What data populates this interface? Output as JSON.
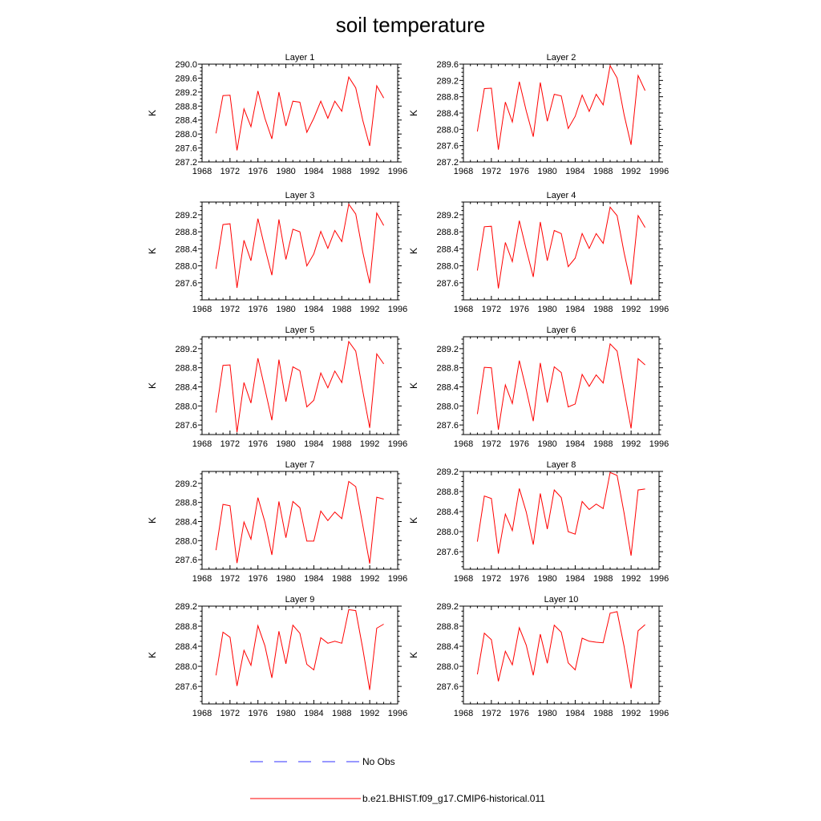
{
  "figure": {
    "title": "soil temperature"
  },
  "colors": {
    "model": "#ff0000",
    "obs": "#0000ff",
    "axis": "#000000"
  },
  "legend": {
    "entries": [
      {
        "label": "No Obs",
        "style": "dashed",
        "color": "#0000ff"
      },
      {
        "label": "b.e21.BHIST.f09_g17.CMIP6-historical.011",
        "style": "solid",
        "color": "#ff0000"
      }
    ]
  },
  "chart_data": [
    {
      "type": "line",
      "title": "Layer 1",
      "xlabel": "",
      "ylabel": "K",
      "xlim": [
        1968,
        1996
      ],
      "xticks": [
        1968,
        1972,
        1976,
        1980,
        1984,
        1988,
        1992,
        1996
      ],
      "ylim": [
        287.2,
        290.0
      ],
      "yticks": [
        287.2,
        287.6,
        288.0,
        288.4,
        288.8,
        289.2,
        289.6,
        290.0
      ],
      "x": [
        1970,
        1971,
        1972,
        1973,
        1974,
        1975,
        1976,
        1977,
        1978,
        1979,
        1980,
        1981,
        1982,
        1983,
        1984,
        1985,
        1986,
        1987,
        1988,
        1989,
        1990,
        1991,
        1992,
        1993,
        1994
      ],
      "series": [
        {
          "name": "b.e21.BHIST.f09_g17.CMIP6-historical.011",
          "values": [
            288.02,
            289.1,
            289.11,
            287.53,
            288.72,
            288.21,
            289.23,
            288.45,
            287.86,
            289.2,
            288.23,
            288.94,
            288.91,
            288.05,
            288.45,
            288.94,
            288.45,
            288.94,
            288.65,
            289.63,
            289.32,
            288.4,
            287.66,
            289.38,
            289.03
          ]
        }
      ]
    },
    {
      "type": "line",
      "title": "Layer 2",
      "xlabel": "",
      "ylabel": "K",
      "xlim": [
        1968,
        1996
      ],
      "xticks": [
        1968,
        1972,
        1976,
        1980,
        1984,
        1988,
        1992,
        1996
      ],
      "ylim": [
        287.2,
        289.6
      ],
      "yticks": [
        287.2,
        287.6,
        288.0,
        288.4,
        288.8,
        289.2,
        289.6
      ],
      "x": [
        1970,
        1971,
        1972,
        1973,
        1974,
        1975,
        1976,
        1977,
        1978,
        1979,
        1980,
        1981,
        1982,
        1983,
        1984,
        1985,
        1986,
        1987,
        1988,
        1989,
        1990,
        1991,
        1992,
        1993,
        1994
      ],
      "series": [
        {
          "name": "b.e21.BHIST.f09_g17.CMIP6-historical.011",
          "values": [
            287.95,
            289.0,
            289.01,
            287.5,
            288.67,
            288.18,
            289.17,
            288.45,
            287.82,
            289.15,
            288.2,
            288.86,
            288.82,
            288.02,
            288.32,
            288.84,
            288.44,
            288.86,
            288.6,
            289.56,
            289.26,
            288.36,
            287.62,
            289.32,
            288.95
          ]
        }
      ]
    },
    {
      "type": "line",
      "title": "Layer 3",
      "xlabel": "",
      "ylabel": "K",
      "xlim": [
        1968,
        1996
      ],
      "xticks": [
        1968,
        1972,
        1976,
        1980,
        1984,
        1988,
        1992,
        1996
      ],
      "ylim": [
        287.2,
        289.5
      ],
      "yticks": [
        287.6,
        288.0,
        288.4,
        288.8,
        289.2
      ],
      "x": [
        1970,
        1971,
        1972,
        1973,
        1974,
        1975,
        1976,
        1977,
        1978,
        1979,
        1980,
        1981,
        1982,
        1983,
        1984,
        1985,
        1986,
        1987,
        1988,
        1989,
        1990,
        1991,
        1992,
        1993,
        1994
      ],
      "series": [
        {
          "name": "b.e21.BHIST.f09_g17.CMIP6-historical.011",
          "values": [
            287.93,
            288.97,
            288.99,
            287.48,
            288.6,
            288.12,
            289.11,
            288.42,
            287.78,
            289.09,
            288.15,
            288.86,
            288.8,
            288.0,
            288.28,
            288.81,
            288.41,
            288.83,
            288.57,
            289.45,
            289.22,
            288.33,
            287.59,
            289.24,
            288.95
          ]
        }
      ]
    },
    {
      "type": "line",
      "title": "Layer 4",
      "xlabel": "",
      "ylabel": "K",
      "xlim": [
        1968,
        1996
      ],
      "xticks": [
        1968,
        1972,
        1976,
        1980,
        1984,
        1988,
        1992,
        1996
      ],
      "ylim": [
        287.2,
        289.5
      ],
      "yticks": [
        287.6,
        288.0,
        288.4,
        288.8,
        289.2
      ],
      "x": [
        1970,
        1971,
        1972,
        1973,
        1974,
        1975,
        1976,
        1977,
        1978,
        1979,
        1980,
        1981,
        1982,
        1983,
        1984,
        1985,
        1986,
        1987,
        1988,
        1989,
        1990,
        1991,
        1992,
        1993,
        1994
      ],
      "series": [
        {
          "name": "b.e21.BHIST.f09_g17.CMIP6-historical.011",
          "values": [
            287.89,
            288.92,
            288.93,
            287.47,
            288.55,
            288.1,
            289.06,
            288.38,
            287.74,
            289.03,
            288.12,
            288.83,
            288.76,
            287.98,
            288.18,
            288.76,
            288.41,
            288.76,
            288.53,
            289.38,
            289.18,
            288.31,
            287.56,
            289.18,
            288.9
          ]
        }
      ]
    },
    {
      "type": "line",
      "title": "Layer 5",
      "xlabel": "",
      "ylabel": "K",
      "xlim": [
        1968,
        1996
      ],
      "xticks": [
        1968,
        1972,
        1976,
        1980,
        1984,
        1988,
        1992,
        1996
      ],
      "ylim": [
        287.4,
        289.45
      ],
      "yticks": [
        287.6,
        288.0,
        288.4,
        288.8,
        289.2
      ],
      "x": [
        1970,
        1971,
        1972,
        1973,
        1974,
        1975,
        1976,
        1977,
        1978,
        1979,
        1980,
        1981,
        1982,
        1983,
        1984,
        1985,
        1986,
        1987,
        1988,
        1989,
        1990,
        1991,
        1992,
        1993,
        1994
      ],
      "series": [
        {
          "name": "b.e21.BHIST.f09_g17.CMIP6-historical.011",
          "values": [
            287.86,
            288.85,
            288.86,
            287.45,
            288.49,
            288.06,
            289.0,
            288.36,
            287.7,
            288.97,
            288.09,
            288.82,
            288.74,
            287.98,
            288.12,
            288.69,
            288.38,
            288.73,
            288.49,
            289.35,
            289.15,
            288.32,
            287.54,
            289.09,
            288.88
          ]
        }
      ]
    },
    {
      "type": "line",
      "title": "Layer 6",
      "xlabel": "",
      "ylabel": "K",
      "xlim": [
        1968,
        1996
      ],
      "xticks": [
        1968,
        1972,
        1976,
        1980,
        1984,
        1988,
        1992,
        1996
      ],
      "ylim": [
        287.4,
        289.45
      ],
      "yticks": [
        287.6,
        288.0,
        288.4,
        288.8,
        289.2
      ],
      "x": [
        1970,
        1971,
        1972,
        1973,
        1974,
        1975,
        1976,
        1977,
        1978,
        1979,
        1980,
        1981,
        1982,
        1983,
        1984,
        1985,
        1986,
        1987,
        1988,
        1989,
        1990,
        1991,
        1992,
        1993,
        1994
      ],
      "series": [
        {
          "name": "b.e21.BHIST.f09_g17.CMIP6-historical.011",
          "values": [
            287.83,
            288.81,
            288.8,
            287.5,
            288.44,
            288.05,
            288.95,
            288.34,
            287.68,
            288.9,
            288.07,
            288.82,
            288.7,
            287.98,
            288.04,
            288.66,
            288.41,
            288.65,
            288.48,
            289.3,
            289.15,
            288.33,
            287.53,
            288.99,
            288.86
          ]
        }
      ]
    },
    {
      "type": "line",
      "title": "Layer 7",
      "xlabel": "",
      "ylabel": "K",
      "xlim": [
        1968,
        1996
      ],
      "xticks": [
        1968,
        1972,
        1976,
        1980,
        1984,
        1988,
        1992,
        1996
      ],
      "ylim": [
        287.4,
        289.45
      ],
      "yticks": [
        287.6,
        288.0,
        288.4,
        288.8,
        289.2
      ],
      "x": [
        1970,
        1971,
        1972,
        1973,
        1974,
        1975,
        1976,
        1977,
        1978,
        1979,
        1980,
        1981,
        1982,
        1983,
        1984,
        1985,
        1986,
        1987,
        1988,
        1989,
        1990,
        1991,
        1992,
        1993,
        1994
      ],
      "series": [
        {
          "name": "b.e21.BHIST.f09_g17.CMIP6-historical.011",
          "values": [
            287.8,
            288.76,
            288.73,
            287.53,
            288.39,
            288.03,
            288.9,
            288.39,
            287.7,
            288.82,
            288.06,
            288.82,
            288.69,
            287.99,
            287.99,
            288.62,
            288.42,
            288.6,
            288.46,
            289.24,
            289.13,
            288.33,
            287.52,
            288.91,
            288.87
          ]
        }
      ]
    },
    {
      "type": "line",
      "title": "Layer 8",
      "xlabel": "",
      "ylabel": "K",
      "xlim": [
        1968,
        1996
      ],
      "xticks": [
        1968,
        1972,
        1976,
        1980,
        1984,
        1988,
        1992,
        1996
      ],
      "ylim": [
        287.25,
        289.2
      ],
      "yticks": [
        287.6,
        288.0,
        288.4,
        288.8,
        289.2
      ],
      "x": [
        1970,
        1971,
        1972,
        1973,
        1974,
        1975,
        1976,
        1977,
        1978,
        1979,
        1980,
        1981,
        1982,
        1983,
        1984,
        1985,
        1986,
        1987,
        1988,
        1989,
        1990,
        1991,
        1992,
        1993,
        1994
      ],
      "series": [
        {
          "name": "b.e21.BHIST.f09_g17.CMIP6-historical.011",
          "values": [
            287.8,
            288.71,
            288.66,
            287.56,
            288.35,
            288.02,
            288.86,
            288.39,
            287.74,
            288.76,
            288.05,
            288.83,
            288.68,
            288.0,
            287.95,
            288.6,
            288.44,
            288.55,
            288.46,
            289.18,
            289.12,
            288.37,
            287.52,
            288.83,
            288.85
          ]
        }
      ]
    },
    {
      "type": "line",
      "title": "Layer 9",
      "xlabel": "",
      "ylabel": "K",
      "xlim": [
        1968,
        1996
      ],
      "xticks": [
        1968,
        1972,
        1976,
        1980,
        1984,
        1988,
        1992,
        1996
      ],
      "ylim": [
        287.25,
        289.2
      ],
      "yticks": [
        287.6,
        288.0,
        288.4,
        288.8,
        289.2
      ],
      "x": [
        1970,
        1971,
        1972,
        1973,
        1974,
        1975,
        1976,
        1977,
        1978,
        1979,
        1980,
        1981,
        1982,
        1983,
        1984,
        1985,
        1986,
        1987,
        1988,
        1989,
        1990,
        1991,
        1992,
        1993,
        1994
      ],
      "series": [
        {
          "name": "b.e21.BHIST.f09_g17.CMIP6-historical.011",
          "values": [
            287.82,
            288.68,
            288.58,
            287.61,
            288.32,
            288.02,
            288.81,
            288.41,
            287.77,
            288.7,
            288.05,
            288.82,
            288.66,
            288.04,
            287.93,
            288.57,
            288.46,
            288.5,
            288.46,
            289.13,
            289.11,
            288.36,
            287.53,
            288.76,
            288.84
          ]
        }
      ]
    },
    {
      "type": "line",
      "title": "Layer 10",
      "xlabel": "",
      "ylabel": "K",
      "xlim": [
        1968,
        1996
      ],
      "xticks": [
        1968,
        1972,
        1976,
        1980,
        1984,
        1988,
        1992,
        1996
      ],
      "ylim": [
        287.25,
        289.2
      ],
      "yticks": [
        287.6,
        288.0,
        288.4,
        288.8,
        289.2
      ],
      "x": [
        1970,
        1971,
        1972,
        1973,
        1974,
        1975,
        1976,
        1977,
        1978,
        1979,
        1980,
        1981,
        1982,
        1983,
        1984,
        1985,
        1986,
        1987,
        1988,
        1989,
        1990,
        1991,
        1992,
        1993,
        1994
      ],
      "series": [
        {
          "name": "b.e21.BHIST.f09_g17.CMIP6-historical.011",
          "values": [
            287.84,
            288.66,
            288.53,
            287.7,
            288.3,
            288.03,
            288.77,
            288.42,
            287.82,
            288.64,
            288.06,
            288.82,
            288.68,
            288.07,
            287.93,
            288.56,
            288.5,
            288.48,
            288.47,
            289.06,
            289.09,
            288.4,
            287.56,
            288.71,
            288.83
          ]
        }
      ]
    }
  ]
}
